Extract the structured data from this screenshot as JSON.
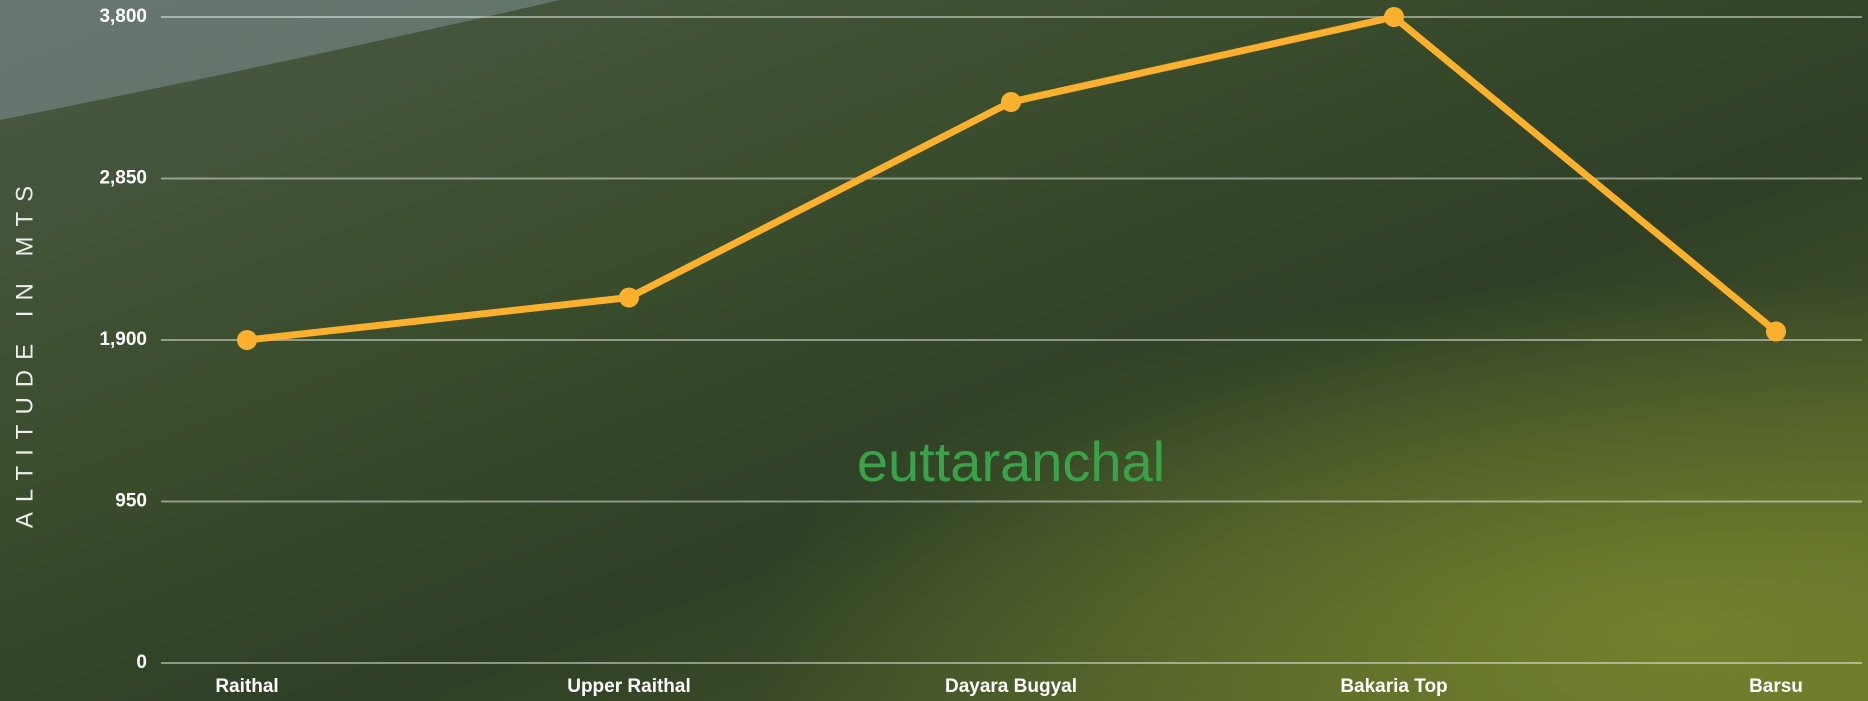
{
  "chart_data": {
    "type": "line",
    "ylabel": "ALTITUDE IN MTS",
    "watermark": "euttaranchal",
    "categories": [
      "Raithal",
      "Upper Raithal",
      "Dayara Bugyal",
      "Bakaria Top",
      "Barsu"
    ],
    "series": [
      {
        "name": "Altitude",
        "color": "#fbb12d",
        "values": [
          1900,
          2150,
          3300,
          3800,
          1950
        ]
      }
    ],
    "ylim": [
      0,
      3800
    ],
    "yticks": [
      0,
      950,
      {
        "value": 1900,
        "label": "1,900"
      },
      {
        "value": 2850,
        "label": "2,850"
      },
      {
        "value": 3800,
        "label": "3,800"
      }
    ],
    "grid": true
  }
}
